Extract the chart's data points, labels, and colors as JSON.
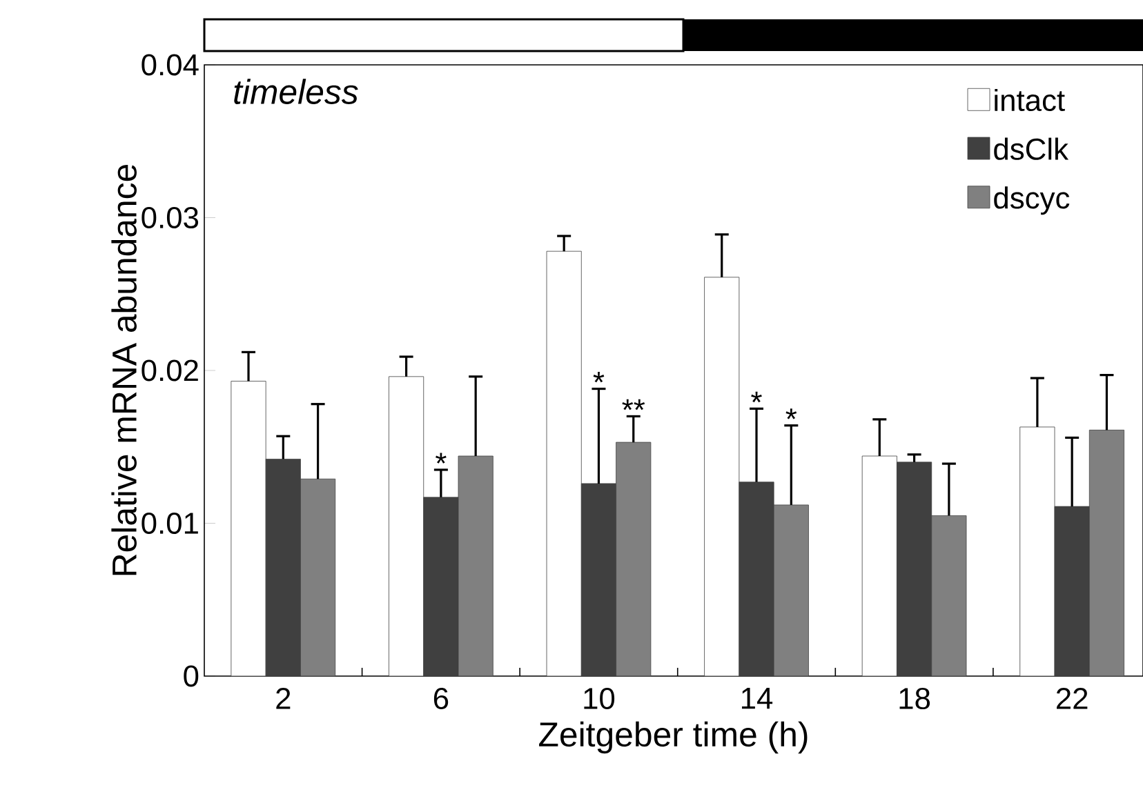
{
  "chart_data": {
    "type": "bar",
    "title": "timeless",
    "xlabel": "Zeitgeber time (h)",
    "ylabel": "Relative mRNA abundance",
    "categories": [
      "2",
      "6",
      "10",
      "14",
      "18",
      "22"
    ],
    "series": [
      {
        "name": "intact",
        "color": "#ffffff",
        "values": [
          0.0193,
          0.0196,
          0.0278,
          0.0261,
          0.0144,
          0.0163
        ],
        "errors": [
          [
            0.0193,
            0.0212
          ],
          [
            0.0196,
            0.0209
          ],
          [
            0.0278,
            0.0288
          ],
          [
            0.0261,
            0.0289
          ],
          [
            0.0144,
            0.0168
          ],
          [
            0.0163,
            0.0195
          ]
        ]
      },
      {
        "name": "dsClk",
        "color": "#404040",
        "values": [
          0.0142,
          0.0117,
          0.0126,
          0.0127,
          0.014,
          0.0111
        ],
        "errors": [
          [
            0.0142,
            0.0157
          ],
          [
            0.0117,
            0.0135
          ],
          [
            0.0126,
            0.0188
          ],
          [
            0.0127,
            0.0175
          ],
          [
            0.014,
            0.0145
          ],
          [
            0.0111,
            0.0156
          ]
        ]
      },
      {
        "name": "dscyc",
        "color": "#808080",
        "values": [
          0.0129,
          0.0144,
          0.0153,
          0.0112,
          0.0105,
          0.0161
        ],
        "errors": [
          [
            0.0129,
            0.0178
          ],
          [
            0.0144,
            0.0196
          ],
          [
            0.0153,
            0.017
          ],
          [
            0.0112,
            0.0164
          ],
          [
            0.0105,
            0.0139
          ],
          [
            0.0161,
            0.0197
          ]
        ]
      }
    ],
    "ylim": [
      0,
      0.04
    ],
    "yticks": [
      0,
      0.01,
      0.02,
      0.03,
      0.04
    ],
    "legend": "top right",
    "annotations": [
      "*",
      "*",
      "**",
      "*",
      "*"
    ]
  }
}
